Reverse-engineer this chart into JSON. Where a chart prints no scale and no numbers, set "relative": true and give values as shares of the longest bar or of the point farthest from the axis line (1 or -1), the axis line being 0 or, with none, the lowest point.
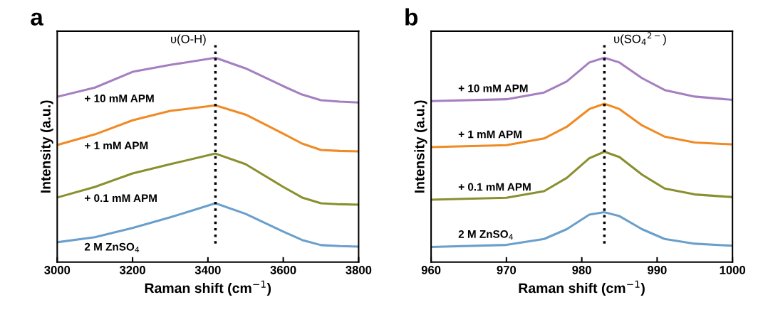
{
  "chart_data": [
    {
      "type": "line",
      "title": "a",
      "xlabel": "Raman shift (cm$^{−1}$)",
      "ylabel": "Intensity (a.u.)",
      "relative": true,
      "xlim": [
        3000,
        3800
      ],
      "xticks": [
        3000,
        3200,
        3400,
        3600,
        3800
      ],
      "grid": false,
      "legend": false,
      "ref_lines": [
        {
          "axis": "x",
          "value": 3420,
          "label": "υ(O-H)",
          "color": "#000000",
          "line_style": "dotted"
        }
      ],
      "series": [
        {
          "name": "2 M ZnSO$_{4}$",
          "color": "#6a9fcb",
          "x": [
            3000,
            3100,
            3200,
            3300,
            3420,
            3500,
            3600,
            3650,
            3700,
            3750,
            3800
          ],
          "values": [
            0.097,
            0.122,
            0.167,
            0.219,
            0.288,
            0.236,
            0.149,
            0.108,
            0.083,
            0.078,
            0.076
          ]
        },
        {
          "name": "+ 0.1 mM APM",
          "color": "#8a8f2f",
          "x": [
            3000,
            3100,
            3200,
            3300,
            3420,
            3500,
            3600,
            3650,
            3700,
            3750,
            3800
          ],
          "values": [
            0.316,
            0.368,
            0.434,
            0.479,
            0.531,
            0.479,
            0.368,
            0.316,
            0.288,
            0.283,
            0.281
          ]
        },
        {
          "name": "+ 1 mM APM",
          "color": "#f08a24",
          "x": [
            3000,
            3100,
            3200,
            3300,
            3420,
            3500,
            3600,
            3650,
            3700,
            3750,
            3800
          ],
          "values": [
            0.573,
            0.625,
            0.694,
            0.74,
            0.767,
            0.722,
            0.628,
            0.58,
            0.549,
            0.544,
            0.542
          ]
        },
        {
          "name": "+ 10 mM APM",
          "color": "#a57fc0",
          "x": [
            3000,
            3100,
            3200,
            3300,
            3420,
            3500,
            3600,
            3650,
            3700,
            3750,
            3800
          ],
          "values": [
            0.809,
            0.854,
            0.931,
            0.965,
            1,
            0.948,
            0.861,
            0.82,
            0.792,
            0.785,
            0.781
          ]
        }
      ]
    },
    {
      "type": "line",
      "title": "b",
      "xlabel": "Raman shift (cm$^{−1}$)",
      "ylabel": "Intensity (a.u.)",
      "relative": true,
      "xlim": [
        960,
        1000
      ],
      "xticks": [
        960,
        970,
        980,
        990,
        1000
      ],
      "grid": false,
      "legend": false,
      "ref_lines": [
        {
          "axis": "x",
          "value": 983,
          "label": "υ(SO$_{4}$$^{2−}$)",
          "color": "#000000",
          "line_style": "dotted"
        }
      ],
      "series": [
        {
          "name": "2 M ZnSO$_{4}$",
          "color": "#6a9fcb",
          "x": [
            960,
            970,
            975,
            978,
            981,
            983,
            985,
            988,
            991,
            995,
            1000
          ],
          "values": [
            0.074,
            0.084,
            0.113,
            0.161,
            0.232,
            0.244,
            0.225,
            0.161,
            0.113,
            0.09,
            0.08
          ]
        },
        {
          "name": "+ 0.1 mM APM",
          "color": "#8a8f2f",
          "x": [
            960,
            970,
            975,
            978,
            981,
            983,
            985,
            988,
            991,
            995,
            1000
          ],
          "values": [
            0.305,
            0.315,
            0.347,
            0.412,
            0.508,
            0.54,
            0.514,
            0.428,
            0.36,
            0.331,
            0.318
          ]
        },
        {
          "name": "+ 1 mM APM",
          "color": "#f08a24",
          "x": [
            960,
            970,
            975,
            978,
            981,
            983,
            985,
            988,
            991,
            995,
            1000
          ],
          "values": [
            0.563,
            0.572,
            0.605,
            0.662,
            0.749,
            0.775,
            0.749,
            0.669,
            0.614,
            0.585,
            0.576
          ]
        },
        {
          "name": "+ 10 mM APM",
          "color": "#a57fc0",
          "x": [
            960,
            970,
            975,
            978,
            981,
            983,
            985,
            988,
            991,
            995,
            1000
          ],
          "values": [
            0.788,
            0.797,
            0.83,
            0.884,
            0.977,
            1,
            0.977,
            0.9,
            0.842,
            0.81,
            0.794
          ]
        }
      ]
    }
  ]
}
